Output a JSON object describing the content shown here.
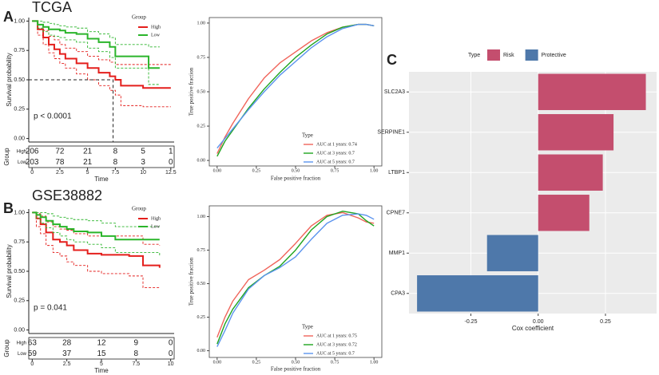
{
  "chart_data": [
    {
      "type": "survival",
      "panel": "A",
      "title": "TCGA",
      "ylabel": "Survival probability",
      "xlabel": "Time",
      "annotation": "p < 0.0001",
      "legend_title": "Group",
      "legend": "upper right",
      "x": [
        0,
        0.5,
        1,
        1.5,
        2,
        2.5,
        3,
        4,
        5,
        6,
        7,
        7.5,
        8,
        10,
        10.5,
        11.5,
        12.5
      ],
      "series": [
        {
          "name": "High",
          "color": "#e41f1c",
          "values": [
            1,
            0.93,
            0.86,
            0.8,
            0.76,
            0.72,
            0.68,
            0.64,
            0.6,
            0.56,
            0.53,
            0.5,
            0.45,
            0.43,
            0.43,
            0.43,
            0.43
          ],
          "upper": [
            1,
            0.97,
            0.92,
            0.87,
            0.84,
            0.8,
            0.77,
            0.74,
            0.7,
            0.67,
            0.65,
            0.63,
            0.63,
            0.63,
            0.63,
            0.63,
            0.63
          ],
          "lower": [
            1,
            0.88,
            0.8,
            0.73,
            0.68,
            0.64,
            0.6,
            0.55,
            0.5,
            0.45,
            0.41,
            0.37,
            0.28,
            0.27,
            0.27,
            0.27,
            0.27
          ]
        },
        {
          "name": "Low",
          "color": "#2bb52b",
          "values": [
            1,
            0.97,
            0.95,
            0.93,
            0.93,
            0.92,
            0.9,
            0.89,
            0.85,
            0.82,
            0.78,
            0.7,
            0.7,
            0.7,
            0.6,
            0.6,
            null
          ],
          "upper": [
            1,
            1,
            0.99,
            0.98,
            0.97,
            0.96,
            0.95,
            0.94,
            0.91,
            0.89,
            0.86,
            0.8,
            0.8,
            0.8,
            0.78,
            0.78,
            null
          ],
          "lower": [
            1,
            0.94,
            0.91,
            0.88,
            0.87,
            0.86,
            0.84,
            0.82,
            0.77,
            0.74,
            0.69,
            0.6,
            0.6,
            0.6,
            0.46,
            0.46,
            null
          ]
        }
      ],
      "median": {
        "x": 7.3,
        "y": 0.5
      },
      "xlim": [
        -0.3,
        12.8
      ],
      "xticks": [
        0,
        2.5,
        5,
        7.5,
        10,
        12.5
      ],
      "ylim": [
        -0.03,
        1.03
      ],
      "yticks": [
        {
          "value": 0,
          "label": "0.00"
        },
        {
          "value": 0.25,
          "label": "0.25"
        },
        {
          "value": 0.5,
          "label": "0.50"
        },
        {
          "value": 0.75,
          "label": "0.75"
        },
        {
          "value": 1,
          "label": "1.00"
        }
      ],
      "risk_table": {
        "ylabel": "Group",
        "rows": [
          {
            "name": "High",
            "values": [
              206,
              72,
              21,
              8,
              5,
              1
            ]
          },
          {
            "name": "Low",
            "values": [
              203,
              78,
              21,
              8,
              3,
              0
            ]
          }
        ]
      }
    },
    {
      "type": "line",
      "xlabel": "False positive fraction",
      "ylabel": "True positive fraction",
      "legend_title": "Type",
      "legend": "lower right",
      "x": [
        0,
        0.05,
        0.1,
        0.2,
        0.3,
        0.4,
        0.5,
        0.6,
        0.7,
        0.8,
        0.9,
        0.95,
        1
      ],
      "series": [
        {
          "name": "AUC at 1 years: 0.74",
          "color": "#f0645a",
          "values": [
            0.05,
            0.17,
            0.27,
            0.45,
            0.6,
            0.71,
            0.79,
            0.87,
            0.93,
            0.97,
            0.99,
            0.99,
            0.98
          ]
        },
        {
          "name": "AUC at 3 years: 0.7",
          "color": "#1fa51f",
          "values": [
            0.03,
            0.14,
            0.22,
            0.38,
            0.52,
            0.64,
            0.75,
            0.84,
            0.92,
            0.97,
            0.99,
            0.99,
            0.98
          ]
        },
        {
          "name": "AUC at 5 years: 0.7",
          "color": "#5b93ee",
          "values": [
            0.09,
            0.16,
            0.23,
            0.37,
            0.5,
            0.62,
            0.72,
            0.82,
            0.9,
            0.96,
            0.99,
            0.99,
            0.98
          ]
        }
      ],
      "xlim": [
        -0.05,
        1.05
      ],
      "xticks": [
        {
          "value": 0,
          "label": "0.00"
        },
        {
          "value": 0.25,
          "label": "0.25"
        },
        {
          "value": 0.5,
          "label": "0.50"
        },
        {
          "value": 0.75,
          "label": "0.75"
        },
        {
          "value": 1,
          "label": "1.00"
        }
      ],
      "ylim": [
        -0.04,
        1.04
      ],
      "yticks": [
        {
          "value": 0,
          "label": "0.00"
        },
        {
          "value": 0.25,
          "label": "0.25"
        },
        {
          "value": 0.5,
          "label": "0.50"
        },
        {
          "value": 0.75,
          "label": "0.75"
        },
        {
          "value": 1,
          "label": "1.00"
        }
      ]
    },
    {
      "type": "survival",
      "panel": "B",
      "title": "GSE38882",
      "ylabel": "Survival probability",
      "xlabel": "Time",
      "annotation": "p = 0.041",
      "legend_title": "Group",
      "legend": "upper right",
      "x": [
        0,
        0.3,
        0.6,
        1,
        1.5,
        2,
        2.5,
        3,
        4,
        5,
        6,
        7,
        8,
        9.2
      ],
      "series": [
        {
          "name": "High",
          "color": "#e41f1c",
          "values": [
            1,
            0.95,
            0.9,
            0.83,
            0.77,
            0.75,
            0.72,
            0.68,
            0.65,
            0.64,
            0.64,
            0.63,
            0.55,
            0.53
          ],
          "upper": [
            1,
            0.99,
            0.97,
            0.92,
            0.88,
            0.86,
            0.85,
            0.82,
            0.8,
            0.8,
            0.8,
            0.8,
            0.73,
            0.72
          ],
          "lower": [
            1,
            0.88,
            0.82,
            0.72,
            0.66,
            0.63,
            0.58,
            0.55,
            0.5,
            0.48,
            0.48,
            0.46,
            0.36,
            0.36
          ]
        },
        {
          "name": "Low",
          "color": "#2bb52b",
          "values": [
            1,
            0.98,
            0.96,
            0.93,
            0.9,
            0.88,
            0.86,
            0.84,
            0.83,
            0.8,
            0.77,
            0.77,
            0.77,
            0.77
          ],
          "upper": [
            1,
            1,
            1,
            0.99,
            0.97,
            0.96,
            0.95,
            0.94,
            0.93,
            0.91,
            0.88,
            0.88,
            0.88,
            0.88
          ],
          "lower": [
            1,
            0.95,
            0.91,
            0.87,
            0.83,
            0.8,
            0.77,
            0.75,
            0.73,
            0.7,
            0.66,
            0.66,
            0.66,
            0.63
          ]
        }
      ],
      "xlim": [
        -0.25,
        10.25
      ],
      "xticks": [
        0,
        2.5,
        5,
        7.5,
        10
      ],
      "ylim": [
        -0.03,
        1.03
      ],
      "yticks": [
        {
          "value": 0,
          "label": "0.00"
        },
        {
          "value": 0.25,
          "label": "0.25"
        },
        {
          "value": 0.5,
          "label": "0.50"
        },
        {
          "value": 0.75,
          "label": "0.75"
        },
        {
          "value": 1,
          "label": "1.00"
        }
      ],
      "risk_table": {
        "ylabel": "Group",
        "rows": [
          {
            "name": "High",
            "values": [
              63,
              28,
              12,
              9,
              0
            ]
          },
          {
            "name": "Low",
            "values": [
              59,
              37,
              15,
              8,
              0
            ]
          }
        ]
      }
    },
    {
      "type": "line",
      "xlabel": "False positive fraction",
      "ylabel": "True positive fraction",
      "legend_title": "Type",
      "legend": "lower right",
      "x": [
        0,
        0.05,
        0.1,
        0.2,
        0.3,
        0.4,
        0.5,
        0.6,
        0.7,
        0.8,
        0.9,
        0.95,
        1
      ],
      "series": [
        {
          "name": "AUC at 1 years: 0.75",
          "color": "#f0645a",
          "values": [
            0.1,
            0.25,
            0.37,
            0.53,
            0.6,
            0.68,
            0.8,
            0.93,
            1.01,
            1.03,
            0.99,
            0.96,
            0.95
          ]
        },
        {
          "name": "AUC at 3 years: 0.72",
          "color": "#1fa51f",
          "values": [
            0.05,
            0.2,
            0.31,
            0.47,
            0.56,
            0.63,
            0.75,
            0.9,
            1,
            1.04,
            1.02,
            0.97,
            0.93
          ]
        },
        {
          "name": "AUC at 5 years: 0.7",
          "color": "#5b93ee",
          "values": [
            0.03,
            0.15,
            0.28,
            0.46,
            0.56,
            0.62,
            0.7,
            0.83,
            0.95,
            1.01,
            1.02,
            1.01,
            0.98
          ]
        }
      ],
      "xlim": [
        -0.05,
        1.05
      ],
      "xticks": [
        {
          "value": 0,
          "label": "0.00"
        },
        {
          "value": 0.25,
          "label": "0.25"
        },
        {
          "value": 0.5,
          "label": "0.50"
        },
        {
          "value": 0.75,
          "label": "0.75"
        },
        {
          "value": 1,
          "label": "1.00"
        }
      ],
      "ylim": [
        -0.05,
        1.08
      ],
      "yticks": [
        {
          "value": 0,
          "label": "0.00"
        },
        {
          "value": 0.25,
          "label": "0.25"
        },
        {
          "value": 0.5,
          "label": "0.50"
        },
        {
          "value": 0.75,
          "label": "0.75"
        },
        {
          "value": 1,
          "label": "1.00"
        }
      ]
    },
    {
      "type": "bar",
      "panel": "C",
      "orientation": "horizontal",
      "xlabel": "Cox coefficient",
      "legend_title": "Type",
      "legend": "top",
      "categories": [
        "SLC2A3",
        "SERPINE1",
        "LTBP1",
        "CPNE7",
        "MMP1",
        "CPA3"
      ],
      "series": [
        {
          "name": "Risk",
          "color": "#c44e6e",
          "values": [
            0.4,
            0.28,
            0.24,
            0.19,
            null,
            null
          ]
        },
        {
          "name": "Protective",
          "color": "#4e78aa",
          "values": [
            null,
            null,
            null,
            null,
            -0.19,
            -0.45
          ]
        }
      ],
      "xlim": [
        -0.48,
        0.44
      ],
      "xticks": [
        {
          "value": -0.25,
          "label": "-0.25"
        },
        {
          "value": 0,
          "label": "0.00"
        },
        {
          "value": 0.25,
          "label": "0.25"
        }
      ],
      "grid": true
    }
  ]
}
